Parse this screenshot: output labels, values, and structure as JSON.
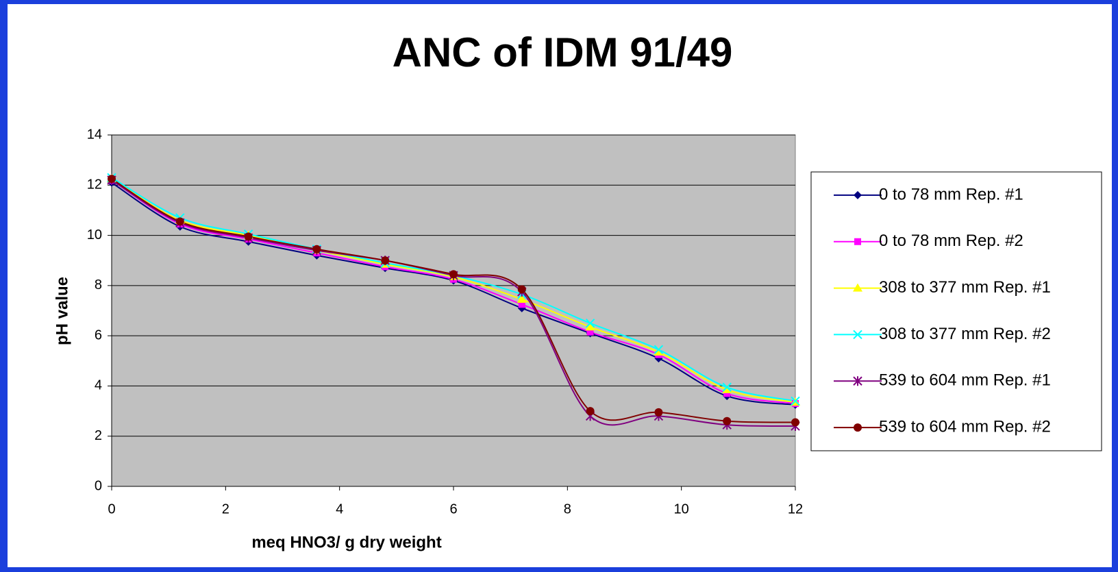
{
  "chart_data": {
    "type": "line",
    "title": "ANC of IDM 91/49",
    "x_label": "meq HNO3/ g dry weight",
    "y_label": "pH value",
    "x": [
      0,
      1.2,
      2.4,
      3.6,
      4.8,
      6,
      7.2,
      8.4,
      9.6,
      10.8,
      12
    ],
    "series": [
      {
        "name": "0 to 78 mm Rep. #1",
        "color": "#000080",
        "marker": "diamond",
        "values": [
          12.1,
          10.35,
          9.75,
          9.2,
          8.7,
          8.2,
          7.1,
          6.1,
          5.1,
          3.6,
          3.25
        ]
      },
      {
        "name": "0 to 78 mm Rep. #2",
        "color": "#ff00ff",
        "marker": "square",
        "values": [
          12.2,
          10.45,
          9.85,
          9.3,
          8.75,
          8.25,
          7.25,
          6.15,
          5.25,
          3.7,
          3.3
        ]
      },
      {
        "name": "308 to 377 mm Rep. #1",
        "color": "#ffff00",
        "marker": "triangle",
        "values": [
          12.25,
          10.6,
          10.0,
          9.4,
          8.85,
          8.35,
          7.45,
          6.35,
          5.35,
          3.85,
          3.35
        ]
      },
      {
        "name": "308 to 377 mm Rep. #2",
        "color": "#00ffff",
        "marker": "x",
        "values": [
          12.3,
          10.7,
          10.05,
          9.45,
          8.9,
          8.4,
          7.65,
          6.5,
          5.45,
          3.95,
          3.4
        ]
      },
      {
        "name": "539 to 604 mm Rep. #1",
        "color": "#800080",
        "marker": "star",
        "values": [
          12.2,
          10.5,
          9.9,
          9.4,
          9.0,
          8.4,
          7.75,
          2.8,
          2.8,
          2.45,
          2.4
        ]
      },
      {
        "name": "539 to 604 mm Rep. #2",
        "color": "#800000",
        "marker": "circle",
        "values": [
          12.25,
          10.55,
          9.95,
          9.45,
          9.0,
          8.45,
          7.85,
          3.0,
          2.95,
          2.6,
          2.55
        ]
      }
    ],
    "xlim": [
      0,
      12
    ],
    "xticks": [
      0,
      2,
      4,
      6,
      8,
      10,
      12
    ],
    "ylim": [
      0,
      14
    ],
    "yticks": [
      0,
      2,
      4,
      6,
      8,
      10,
      12,
      14
    ],
    "grid": true,
    "smooth": true,
    "legend": "right",
    "plot_background": "#c0c0c0"
  }
}
